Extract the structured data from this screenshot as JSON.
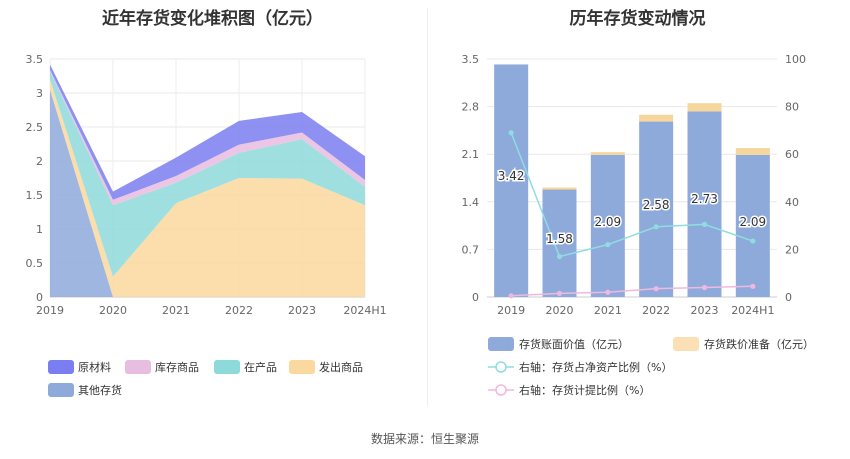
{
  "left_title": "近年存货变化堆积图（亿元）",
  "right_title": "历年存货变动情况",
  "source": "数据来源：恒生聚源",
  "colors": {
    "raw": "#7b7ef0",
    "stock": "#e7bde0",
    "wip": "#8ed9d9",
    "shipped": "#fbd89f",
    "other": "#8eaadb",
    "book": "#8eaadb",
    "reserve": "#fbe0b5",
    "ratio_line": "#8fdde0",
    "provision_line": "#f0b8e0"
  },
  "chart_data": [
    {
      "type": "area",
      "title": "近年存货变化堆积图（亿元）",
      "stacked": true,
      "x": [
        "2019",
        "2020",
        "2021",
        "2022",
        "2023",
        "2024H1"
      ],
      "yticks": [
        "0",
        "0.5",
        "1",
        "1.5",
        "2",
        "2.5",
        "3",
        "3.5"
      ],
      "ylim": [
        0,
        3.5
      ],
      "grid": true,
      "legend_position": "bottom",
      "series": [
        {
          "name": "其他存货",
          "key": "other",
          "values": [
            3.05,
            0.0,
            0.0,
            0.0,
            0.0,
            0.0
          ]
        },
        {
          "name": "发出商品",
          "key": "shipped",
          "values": [
            0.15,
            0.3,
            1.38,
            1.75,
            1.74,
            1.35
          ]
        },
        {
          "name": "在产品",
          "key": "wip",
          "values": [
            0.12,
            1.05,
            0.3,
            0.37,
            0.58,
            0.27
          ]
        },
        {
          "name": "库存商品",
          "key": "stock",
          "values": [
            0.02,
            0.08,
            0.1,
            0.12,
            0.1,
            0.1
          ]
        },
        {
          "name": "原材料",
          "key": "raw",
          "values": [
            0.08,
            0.12,
            0.27,
            0.35,
            0.3,
            0.35
          ]
        }
      ],
      "legend": [
        {
          "name": "原材料",
          "key": "raw"
        },
        {
          "name": "库存商品",
          "key": "stock"
        },
        {
          "name": "在产品",
          "key": "wip"
        },
        {
          "name": "发出商品",
          "key": "shipped"
        },
        {
          "name": "其他存货",
          "key": "other"
        }
      ]
    },
    {
      "type": "bar",
      "title": "历年存货变动情况",
      "stacked": true,
      "categories": [
        "2019",
        "2020",
        "2021",
        "2022",
        "2023",
        "2024H1"
      ],
      "ylim": [
        0,
        3.5
      ],
      "yticks": [
        "0",
        "0.7",
        "1.4",
        "2.1",
        "2.8",
        "3.5"
      ],
      "y2lim": [
        0,
        100
      ],
      "y2ticks": [
        "0",
        "20",
        "40",
        "60",
        "80",
        "100"
      ],
      "grid": true,
      "legend_position": "bottom",
      "series": [
        {
          "name": "存货账面价值（亿元）",
          "key": "book",
          "values": [
            3.42,
            1.58,
            2.09,
            2.58,
            2.73,
            2.09
          ],
          "labels": [
            "3.42",
            "1.58",
            "2.09",
            "2.58",
            "2.73",
            "2.09"
          ]
        },
        {
          "name": "存货跌价准备（亿元）",
          "key": "reserve",
          "values": [
            0.0,
            0.03,
            0.04,
            0.1,
            0.12,
            0.1
          ]
        }
      ],
      "lines": [
        {
          "name": "右轴：存货占净资产比例（%）",
          "key": "ratio_line",
          "axis": "right",
          "values": [
            69,
            17,
            22,
            29.5,
            30.5,
            23.5
          ]
        },
        {
          "name": "右轴：存货计提比例（%）",
          "key": "provision_line",
          "axis": "right",
          "values": [
            0.5,
            1.5,
            2,
            3.5,
            4,
            4.5
          ]
        }
      ]
    }
  ]
}
